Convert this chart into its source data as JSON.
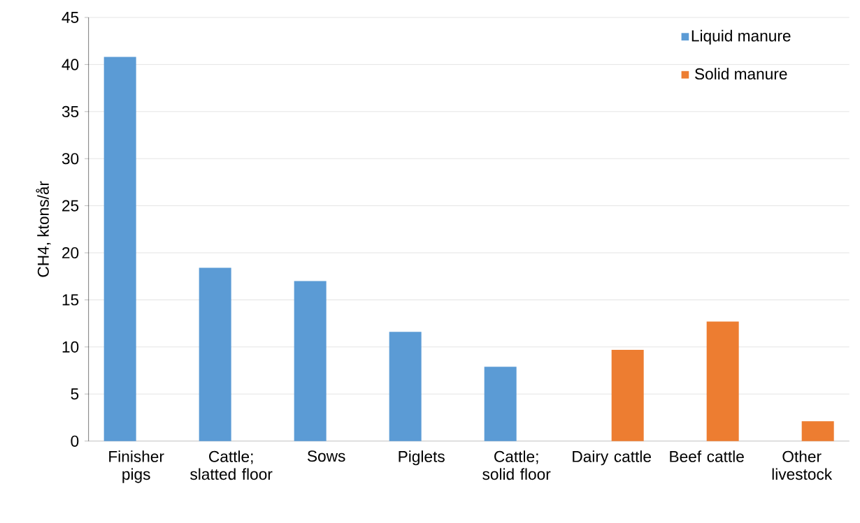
{
  "chart_data": {
    "type": "bar",
    "ylabel": "CH4, ktons/år",
    "categories": [
      "Finisher pigs",
      "Cattle; slatted floor",
      "Sows",
      "Piglets",
      "Cattle; solid floor",
      "Dairy cattle",
      "Beef cattle",
      "Other livestock"
    ],
    "series": [
      {
        "name": "Liquid manure",
        "color": "#5b9bd5",
        "values": [
          40.8,
          18.4,
          17.0,
          11.6,
          7.9,
          null,
          null,
          null
        ]
      },
      {
        "name": "Solid manure",
        "color": "#ed7d31",
        "values": [
          null,
          null,
          null,
          null,
          null,
          9.7,
          12.7,
          2.1
        ]
      }
    ],
    "ylim": [
      0,
      45
    ],
    "yticks": [
      0,
      5,
      10,
      15,
      20,
      25,
      30,
      35,
      40,
      45
    ],
    "grid": "y",
    "legend": "top right"
  }
}
